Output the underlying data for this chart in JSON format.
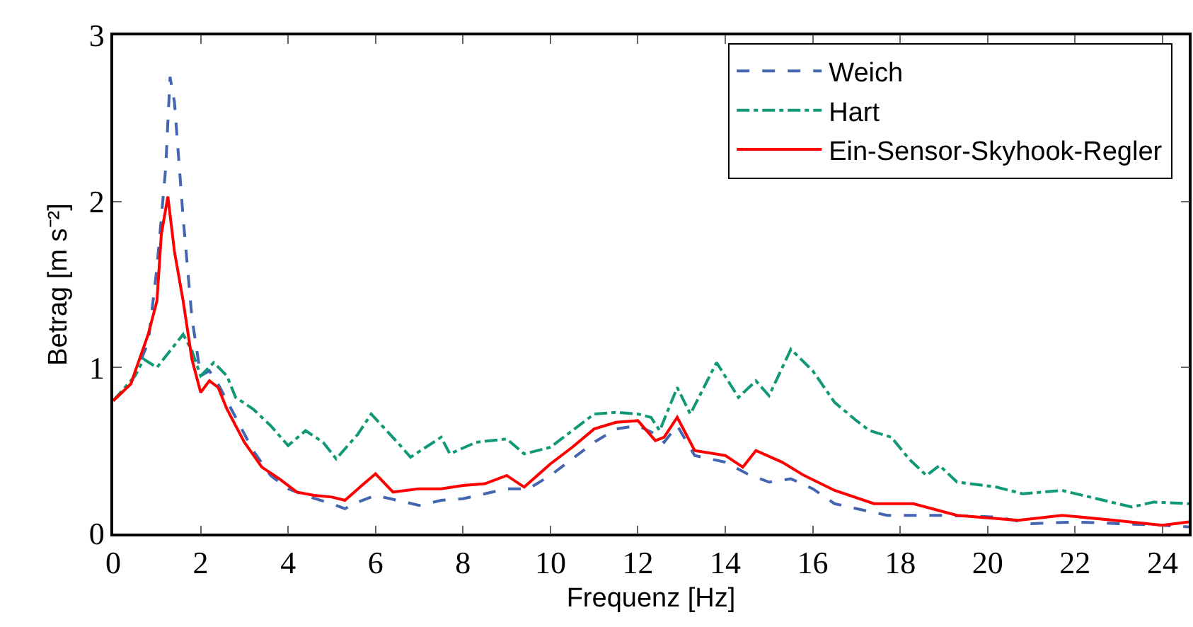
{
  "chart_data": {
    "type": "line",
    "xlabel": "Frequenz [Hz]",
    "ylabel": "Betrag [m s⁻²]",
    "xlim": [
      0,
      24.6
    ],
    "xticks": [
      0,
      2,
      4,
      6,
      8,
      10,
      12,
      14,
      16,
      18,
      20,
      22,
      24
    ],
    "ylim": [
      0,
      3
    ],
    "yticks": [
      0,
      1,
      2,
      3
    ],
    "grid": false,
    "legend": "top right",
    "marker": "none",
    "series": [
      {
        "name": "Weich",
        "color": "#4466b0",
        "line_style": "dashed",
        "x": [
          0,
          0.4,
          0.8,
          1.0,
          1.2,
          1.3,
          1.4,
          1.6,
          1.8,
          2.0,
          2.2,
          2.4,
          2.8,
          3.2,
          3.6,
          4,
          4.5,
          5,
          5.3,
          5.6,
          6,
          6.5,
          7,
          7.5,
          8,
          8.5,
          9,
          9.5,
          10,
          10.5,
          11,
          11.5,
          12,
          12.4,
          12.6,
          12.9,
          13.3,
          14,
          14.5,
          15,
          15.5,
          16,
          16.5,
          17,
          17.7,
          19,
          20.2,
          21,
          22,
          23,
          24,
          24.6
        ],
        "values": [
          0.8,
          0.9,
          1.15,
          1.6,
          2.2,
          2.75,
          2.6,
          1.9,
          1.3,
          0.95,
          0.98,
          0.9,
          0.7,
          0.5,
          0.35,
          0.27,
          0.22,
          0.18,
          0.15,
          0.19,
          0.23,
          0.2,
          0.17,
          0.2,
          0.21,
          0.24,
          0.27,
          0.27,
          0.35,
          0.45,
          0.55,
          0.63,
          0.65,
          0.6,
          0.55,
          0.65,
          0.47,
          0.43,
          0.36,
          0.31,
          0.33,
          0.27,
          0.18,
          0.15,
          0.11,
          0.11,
          0.1,
          0.06,
          0.07,
          0.06,
          0.05,
          0.04
        ]
      },
      {
        "name": "Hart",
        "color": "#119977",
        "line_style": "dashdot",
        "x": [
          0,
          0.5,
          0.7,
          1.0,
          1.3,
          1.6,
          1.8,
          2.0,
          2.3,
          2.6,
          2.8,
          3.2,
          3.6,
          4.0,
          4.4,
          4.8,
          5.1,
          5.6,
          5.9,
          6.5,
          6.8,
          7.5,
          7.7,
          8.3,
          9.0,
          9.4,
          10,
          10.5,
          11,
          11.5,
          12,
          12.3,
          12.5,
          12.9,
          13.2,
          13.8,
          14.3,
          14.7,
          15,
          15.5,
          16,
          16.5,
          17,
          17.3,
          17.8,
          18.2,
          18.6,
          18.9,
          19.3,
          20.2,
          20.8,
          21.7,
          22.5,
          23.3,
          23.8,
          24.6
        ],
        "values": [
          0.8,
          0.95,
          1.05,
          1.0,
          1.1,
          1.2,
          1.1,
          0.95,
          1.03,
          0.95,
          0.82,
          0.75,
          0.65,
          0.53,
          0.62,
          0.55,
          0.45,
          0.6,
          0.72,
          0.55,
          0.46,
          0.58,
          0.48,
          0.55,
          0.57,
          0.48,
          0.52,
          0.62,
          0.72,
          0.73,
          0.72,
          0.7,
          0.62,
          0.88,
          0.72,
          1.03,
          0.82,
          0.92,
          0.83,
          1.11,
          0.98,
          0.79,
          0.68,
          0.62,
          0.58,
          0.45,
          0.35,
          0.41,
          0.31,
          0.28,
          0.24,
          0.26,
          0.21,
          0.16,
          0.19,
          0.18
        ]
      },
      {
        "name": "Ein-Sensor-Skyhook-Regler",
        "color": "#ff0000",
        "line_style": "solid",
        "x": [
          0,
          0.4,
          0.6,
          0.8,
          1.0,
          1.1,
          1.25,
          1.4,
          1.6,
          1.8,
          2.0,
          2.2,
          2.4,
          2.6,
          3.0,
          3.4,
          3.8,
          4.2,
          4.6,
          5.0,
          5.3,
          5.6,
          6.0,
          6.4,
          7,
          7.5,
          8,
          8.5,
          9,
          9.4,
          10,
          10.5,
          11,
          11.5,
          12,
          12.4,
          12.6,
          12.9,
          13.3,
          14,
          14.4,
          14.7,
          15.3,
          15.8,
          16.5,
          17.4,
          18.3,
          19.3,
          20.7,
          21.7,
          22.9,
          24,
          24.6
        ],
        "values": [
          0.8,
          0.9,
          1.05,
          1.2,
          1.4,
          1.8,
          2.03,
          1.7,
          1.4,
          1.05,
          0.85,
          0.92,
          0.88,
          0.75,
          0.55,
          0.4,
          0.33,
          0.25,
          0.23,
          0.22,
          0.2,
          0.27,
          0.36,
          0.25,
          0.27,
          0.27,
          0.29,
          0.3,
          0.35,
          0.28,
          0.42,
          0.52,
          0.63,
          0.67,
          0.68,
          0.56,
          0.58,
          0.7,
          0.5,
          0.47,
          0.4,
          0.5,
          0.43,
          0.35,
          0.26,
          0.18,
          0.18,
          0.11,
          0.08,
          0.11,
          0.08,
          0.05,
          0.07
        ]
      }
    ]
  }
}
